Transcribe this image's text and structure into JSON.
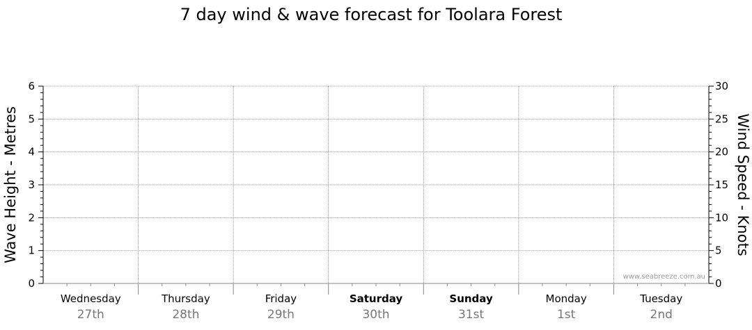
{
  "chart_data": {
    "type": "line",
    "title": "7 day wind & wave forecast for Toolara Forest",
    "ylabel_left": "Wave Height - Metres",
    "ylabel_right": "Wind Speed - Knots",
    "ylim_left": [
      0,
      6
    ],
    "ylim_right": [
      0,
      30
    ],
    "yticks_left": [
      0,
      1,
      2,
      3,
      4,
      5,
      6
    ],
    "yticks_right": [
      0,
      5,
      10,
      15,
      20,
      25,
      30
    ],
    "grid": true,
    "days": [
      {
        "day": "Wednesday",
        "date": "27th",
        "weekend": false
      },
      {
        "day": "Thursday",
        "date": "28th",
        "weekend": false
      },
      {
        "day": "Friday",
        "date": "29th",
        "weekend": false
      },
      {
        "day": "Saturday",
        "date": "30th",
        "weekend": true
      },
      {
        "day": "Sunday",
        "date": "31st",
        "weekend": true
      },
      {
        "day": "Monday",
        "date": "1st",
        "weekend": false
      },
      {
        "day": "Tuesday",
        "date": "2nd",
        "weekend": false
      }
    ],
    "series": []
  },
  "watermark": "www.seabreeze.com.au"
}
